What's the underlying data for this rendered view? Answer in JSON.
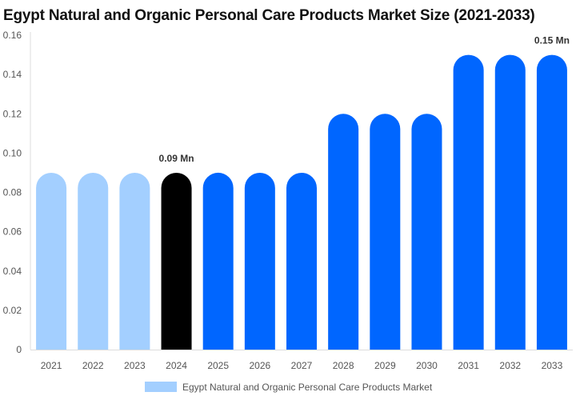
{
  "chart_data": {
    "type": "bar",
    "title": "Egypt Natural and Organic Personal Care Products Market Size (2021-2033)",
    "categories": [
      "2021",
      "2022",
      "2023",
      "2024",
      "2025",
      "2026",
      "2027",
      "2028",
      "2029",
      "2030",
      "2031",
      "2032",
      "2033"
    ],
    "series": [
      {
        "name": "Egypt Natural and Organic Personal Care Products Market",
        "values": [
          0.09,
          0.09,
          0.09,
          0.09,
          0.09,
          0.09,
          0.09,
          0.12,
          0.12,
          0.12,
          0.15,
          0.15,
          0.15
        ]
      }
    ],
    "bar_colors": [
      "#a3cfff",
      "#a3cfff",
      "#a3cfff",
      "#000000",
      "#0066ff",
      "#0066ff",
      "#0066ff",
      "#0066ff",
      "#0066ff",
      "#0066ff",
      "#0066ff",
      "#0066ff",
      "#0066ff"
    ],
    "data_labels": {
      "3": "0.09 Mn",
      "12": "0.15 Mn"
    },
    "ylim": [
      0,
      0.16
    ],
    "yticks": [
      "0",
      "0.02",
      "0.04",
      "0.06",
      "0.08",
      "0.10",
      "0.12",
      "0.14",
      "0.16"
    ],
    "xlabel": "",
    "ylabel": "",
    "grid": false,
    "legend_position": "bottom",
    "legend_color": "#a3cfff"
  }
}
